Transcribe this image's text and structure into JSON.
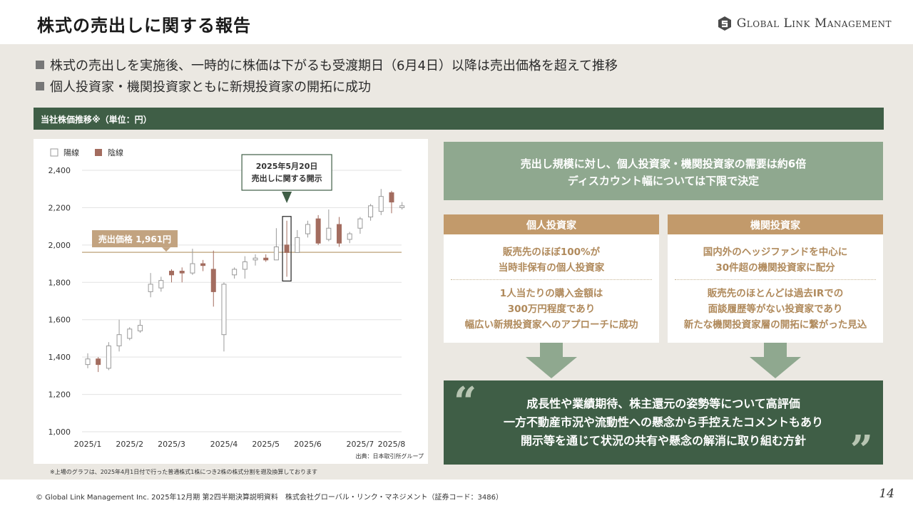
{
  "header": {
    "title": "株式の売出しに関する報告",
    "logo_text": "Global Link Management"
  },
  "bullets": [
    "株式の売出しを実施後、一時的に株価は下がるも受渡期日（6月4日）以降は売出価格を超えて推移",
    "個人投資家・機関投資家ともに新規投資家の開拓に成功"
  ],
  "section_label": "当社株価推移※（単位：円）",
  "chart_data": {
    "type": "candlestick",
    "legend": [
      "陽線",
      "陰線"
    ],
    "legend_placement": "top-left",
    "colors": {
      "up_fill": "#ffffff",
      "up_stroke": "#9a9a9a",
      "down_fill": "#a36c5f",
      "down_stroke": "#a36c5f"
    },
    "ylim": [
      1000,
      2400
    ],
    "yticks": [
      "2,400",
      "2,200",
      "2,000",
      "1,800",
      "1,600",
      "1,400",
      "1,200",
      "1,000"
    ],
    "ytick_values": [
      2400,
      2200,
      2000,
      1800,
      1600,
      1400,
      1200,
      1000
    ],
    "xticks": [
      {
        "label": "2025/1",
        "index": 0
      },
      {
        "label": "2025/2",
        "index": 4
      },
      {
        "label": "2025/3",
        "index": 8
      },
      {
        "label": "2025/4",
        "index": 13
      },
      {
        "label": "2025/5",
        "index": 17
      },
      {
        "label": "2025/6",
        "index": 21
      },
      {
        "label": "2025/7",
        "index": 26
      },
      {
        "label": "2025/8",
        "index": 29
      }
    ],
    "candles": [
      {
        "o": 1360,
        "c": 1390,
        "h": 1420,
        "l": 1340
      },
      {
        "o": 1390,
        "c": 1360,
        "h": 1400,
        "l": 1320
      },
      {
        "o": 1340,
        "c": 1460,
        "h": 1480,
        "l": 1330
      },
      {
        "o": 1460,
        "c": 1520,
        "h": 1600,
        "l": 1430
      },
      {
        "o": 1500,
        "c": 1550,
        "h": 1560,
        "l": 1490
      },
      {
        "o": 1540,
        "c": 1570,
        "h": 1600,
        "l": 1530
      },
      {
        "o": 1750,
        "c": 1790,
        "h": 1850,
        "l": 1720
      },
      {
        "o": 1770,
        "c": 1810,
        "h": 1830,
        "l": 1750
      },
      {
        "o": 1860,
        "c": 1840,
        "h": 1870,
        "l": 1800
      },
      {
        "o": 1860,
        "c": 1850,
        "h": 1880,
        "l": 1800
      },
      {
        "o": 1850,
        "c": 1900,
        "h": 1980,
        "l": 1840
      },
      {
        "o": 1900,
        "c": 1890,
        "h": 1920,
        "l": 1860
      },
      {
        "o": 1870,
        "c": 1750,
        "h": 1970,
        "l": 1670
      },
      {
        "o": 1520,
        "c": 1790,
        "h": 1800,
        "l": 1430
      },
      {
        "o": 1840,
        "c": 1870,
        "h": 1880,
        "l": 1820
      },
      {
        "o": 1870,
        "c": 1910,
        "h": 1940,
        "l": 1820
      },
      {
        "o": 1920,
        "c": 1930,
        "h": 1950,
        "l": 1890
      },
      {
        "o": 1930,
        "c": 1920,
        "h": 1950,
        "l": 1910
      },
      {
        "o": 1920,
        "c": 1990,
        "h": 2090,
        "l": 1920
      },
      {
        "o": 2000,
        "c": 1960,
        "h": 2130,
        "l": 1830
      },
      {
        "o": 1960,
        "c": 2040,
        "h": 2080,
        "l": 1960
      },
      {
        "o": 2060,
        "c": 2110,
        "h": 2130,
        "l": 2040
      },
      {
        "o": 2140,
        "c": 2010,
        "h": 2160,
        "l": 2000
      },
      {
        "o": 2030,
        "c": 2090,
        "h": 2190,
        "l": 2020
      },
      {
        "o": 2110,
        "c": 2010,
        "h": 2150,
        "l": 1990
      },
      {
        "o": 2030,
        "c": 2060,
        "h": 2070,
        "l": 2010
      },
      {
        "o": 2090,
        "c": 2140,
        "h": 2150,
        "l": 2060
      },
      {
        "o": 2150,
        "c": 2210,
        "h": 2220,
        "l": 2130
      },
      {
        "o": 2180,
        "c": 2260,
        "h": 2300,
        "l": 2160
      },
      {
        "o": 2280,
        "c": 2230,
        "h": 2290,
        "l": 2170
      },
      {
        "o": 2200,
        "c": 2210,
        "h": 2230,
        "l": 2190
      }
    ],
    "reference_line": {
      "value": 1961,
      "label": "売出価格 1,961円"
    },
    "highlight": {
      "index": 19,
      "label_line1": "2025年5月20日",
      "label_line2": "売出しに関する開示"
    },
    "source": "出典：日本取引所グループ"
  },
  "footnote": "※上場のグラフは、2025年4月1日付で行った普通株式1株につき2株の株式分割を遡及換算しております",
  "demand_box": {
    "line1": "売出し規模に対し、個人投資家・機関投資家の需要は約6倍",
    "line2": "ディスカウント幅については下限で決定"
  },
  "individual": {
    "header": "個人投資家",
    "p1_line1": "販売先のほぼ100%が",
    "p1_line2": "当時非保有の個人投資家",
    "p2_line1": "1人当たりの購入金額は",
    "p2_line2": "300万円程度であり",
    "p2_line3": "幅広い新規投資家へのアプローチに成功"
  },
  "institutional": {
    "header": "機関投資家",
    "p1_line1": "国内外のヘッジファンドを中心に",
    "p1_line2": "30件超の機関投資家に配分",
    "p2_line1": "販売先のほとんどは過去IRでの",
    "p2_line2": "面談履歴等がない投資家であり",
    "p2_line3": "新たな機関投資家層の開拓に繋がった見込"
  },
  "conclusion": {
    "line1": "成長性や業績期待、株主還元の姿勢等について高評価",
    "line2": "一方不動産市況や流動性への懸念から手控えたコメントもあり",
    "line3": "開示等を通じて状況の共有や懸念の解消に取り組む方針",
    "quote_open": "“",
    "quote_close": "”"
  },
  "footer": {
    "copyright": "© Global Link Management Inc. 2025年12月期 第2四半期決算説明資料　株式会社グローバル・リンク・マネジメント（証券コード：3486）",
    "page_number": "14"
  }
}
